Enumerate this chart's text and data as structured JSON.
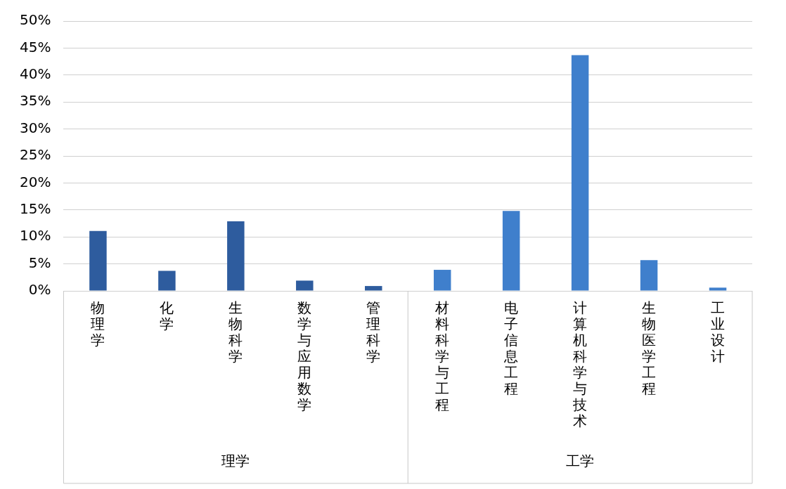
{
  "chart_data": {
    "type": "bar",
    "categories": [
      "物理学",
      "化学",
      "生物科学",
      "数学与应用数学",
      "管理科学",
      "材料科学与工程",
      "电子信息工程",
      "计算机科学与技术",
      "生物医学工程",
      "工业设计"
    ],
    "values": [
      11.1,
      3.7,
      12.9,
      1.9,
      0.9,
      3.9,
      14.8,
      43.7,
      5.7,
      0.6
    ],
    "colors": [
      "#2e5c9e",
      "#2e5c9e",
      "#2e5c9e",
      "#2e5c9e",
      "#2e5c9e",
      "#3f7fcc",
      "#3f7fcc",
      "#3f7fcc",
      "#3f7fcc",
      "#3f7fcc"
    ],
    "ylim": [
      0,
      50
    ],
    "yticks": [
      {
        "value": 0,
        "label": "0%"
      },
      {
        "value": 5,
        "label": "5%"
      },
      {
        "value": 10,
        "label": "10%"
      },
      {
        "value": 15,
        "label": "15%"
      },
      {
        "value": 20,
        "label": "20%"
      },
      {
        "value": 25,
        "label": "25%"
      },
      {
        "value": 30,
        "label": "30%"
      },
      {
        "value": 35,
        "label": "35%"
      },
      {
        "value": 40,
        "label": "40%"
      },
      {
        "value": 45,
        "label": "45%"
      },
      {
        "value": 50,
        "label": "50%"
      }
    ],
    "grid": "y",
    "legend": false,
    "annotations": [
      "理学",
      "工学"
    ]
  }
}
